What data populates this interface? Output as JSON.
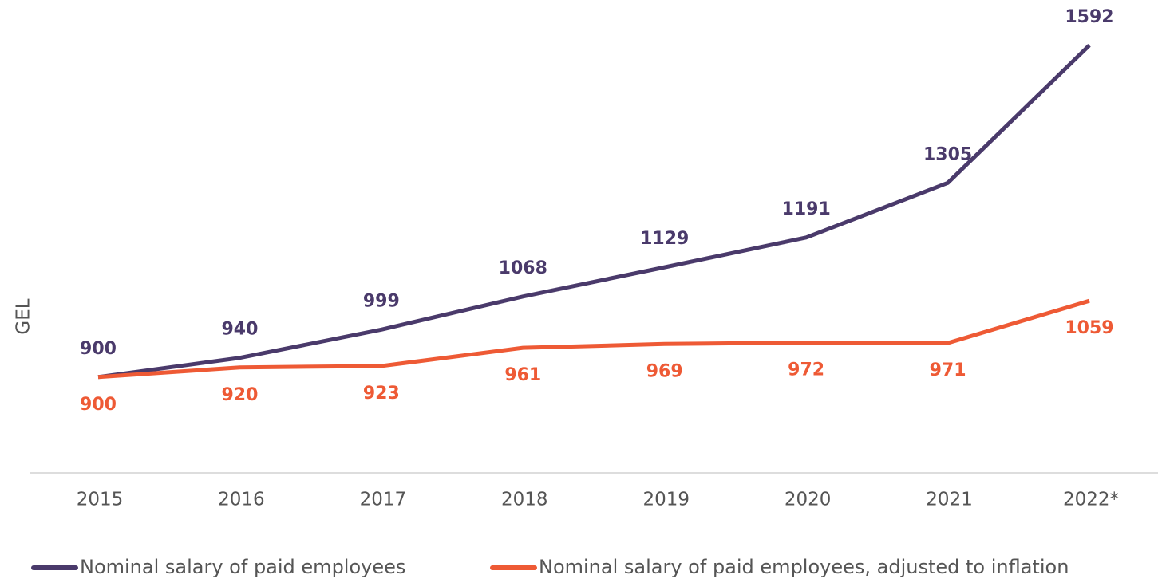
{
  "chart_data": {
    "type": "line",
    "y_label": "GEL",
    "categories": [
      "2015",
      "2016",
      "2017",
      "2018",
      "2019",
      "2020",
      "2021",
      "2022*"
    ],
    "series": [
      {
        "name": "Nominal salary of paid employees",
        "color": "#4a3a6b",
        "values": [
          900,
          940,
          999,
          1068,
          1129,
          1191,
          1305,
          1592
        ]
      },
      {
        "name": "Nominal salary of paid employees, adjusted to inflation",
        "color": "#ee5a35",
        "values": [
          900,
          920,
          923,
          961,
          969,
          972,
          971,
          1059
        ]
      }
    ],
    "ylim": [
      700,
      1600
    ]
  }
}
